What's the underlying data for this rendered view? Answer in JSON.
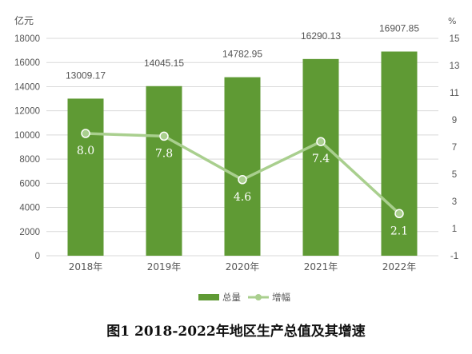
{
  "caption": "图1  2018-2022年地区生产总值及其增速",
  "colors": {
    "bar": "#5f9a34",
    "line": "#a9cf8e",
    "grid": "#d9d9d9",
    "text": "#555555",
    "label_white": "#ffffff"
  },
  "chart_data": {
    "type": "bar+line",
    "categories": [
      "2018年",
      "2019年",
      "2020年",
      "2021年",
      "2022年"
    ],
    "series": [
      {
        "name": "总量",
        "type": "bar",
        "axis": "left",
        "values": [
          13009.17,
          14045.15,
          14782.95,
          16290.13,
          16907.85
        ]
      },
      {
        "name": "增幅",
        "type": "line",
        "axis": "right",
        "values": [
          8.0,
          7.8,
          4.6,
          7.4,
          2.1
        ]
      }
    ],
    "left_axis": {
      "unit": "亿元",
      "ylim": [
        0,
        18000
      ],
      "ticks": [
        "0",
        "2000",
        "4000",
        "6000",
        "8000",
        "10000",
        "12000",
        "14000",
        "16000",
        "18000"
      ]
    },
    "right_axis": {
      "unit": "%",
      "ylim": [
        -1,
        15
      ],
      "ticks": [
        "-1",
        "1",
        "3",
        "5",
        "7",
        "9",
        "11",
        "13",
        "15"
      ]
    },
    "bar_labels": [
      "13009.17",
      "14045.15",
      "14782.95",
      "16290.13",
      "16907.85"
    ],
    "line_labels": [
      "8.0",
      "7.8",
      "4.6",
      "7.4",
      "2.1"
    ],
    "legend": [
      "总量",
      "增幅"
    ],
    "legend_position": "bottom",
    "grid": true
  }
}
